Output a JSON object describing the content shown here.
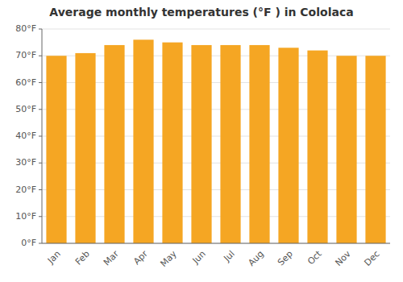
{
  "chart_data": {
    "type": "bar",
    "title": "Average monthly temperatures (°F ) in Cololaca",
    "categories": [
      "Jan",
      "Feb",
      "Mar",
      "Apr",
      "May",
      "Jun",
      "Jul",
      "Aug",
      "Sep",
      "Oct",
      "Nov",
      "Dec"
    ],
    "values": [
      70,
      71,
      74,
      76,
      75,
      74,
      74,
      74,
      73,
      72,
      70,
      70
    ],
    "color": "#F5A623",
    "ylim": [
      0,
      80
    ],
    "yticks": [
      {
        "value": 0,
        "label": "0°F"
      },
      {
        "value": 10,
        "label": "10°F"
      },
      {
        "value": 20,
        "label": "20°F"
      },
      {
        "value": 30,
        "label": "30°F"
      },
      {
        "value": 40,
        "label": "40°F"
      },
      {
        "value": 50,
        "label": "50°F"
      },
      {
        "value": 60,
        "label": "60°F"
      },
      {
        "value": 70,
        "label": "70°F"
      },
      {
        "value": 80,
        "label": "80°F"
      }
    ],
    "grid": true
  }
}
